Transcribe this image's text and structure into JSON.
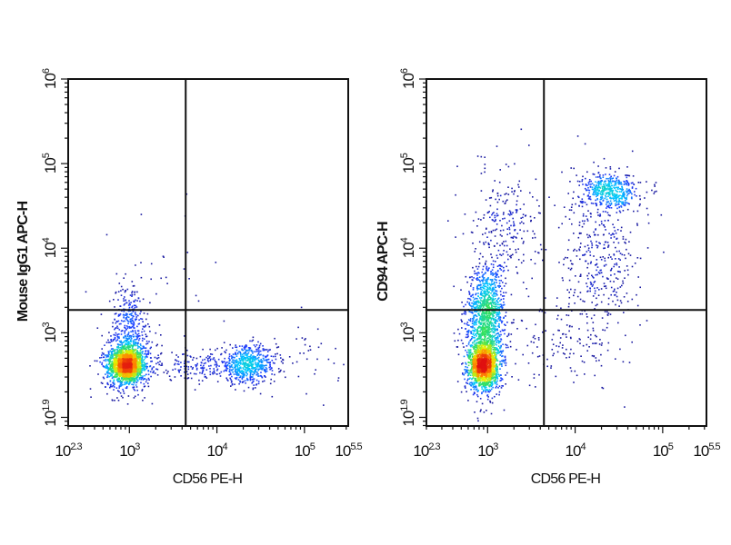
{
  "chart_data": [
    {
      "type": "scatter",
      "subtype": "flow-cytometry-density-dot-plot",
      "xlabel": "CD56 PE-H",
      "ylabel": "Mouse IgG1 APC-H",
      "xscale": "log",
      "yscale": "log",
      "xlim": [
        200,
        316228
      ],
      "ylim": [
        79,
        1000000
      ],
      "x_ticks": [
        {
          "base": "10",
          "exp": "2.3",
          "value": 200
        },
        {
          "base": "10",
          "exp": "3",
          "value": 1000
        },
        {
          "base": "10",
          "exp": "4",
          "value": 10000
        },
        {
          "base": "10",
          "exp": "5",
          "value": 100000
        },
        {
          "base": "10",
          "exp": "5.5",
          "value": 316228
        }
      ],
      "y_ticks": [
        {
          "base": "10",
          "exp": "1.9",
          "value": 79
        },
        {
          "base": "10",
          "exp": "3",
          "value": 1000
        },
        {
          "base": "10",
          "exp": "4",
          "value": 10000
        },
        {
          "base": "10",
          "exp": "5",
          "value": 100000
        },
        {
          "base": "10",
          "exp": "6",
          "value": 1000000
        }
      ],
      "quadrant_gate": {
        "x": 4400,
        "y": 1860
      },
      "populations": [
        {
          "center_x": 933,
          "center_y": 417,
          "spread_decades": [
            0.09,
            0.1
          ],
          "events": 1400
        },
        {
          "center_x": 933,
          "center_y": 447,
          "spread_decades": [
            0.14,
            0.17
          ],
          "events": 700
        },
        {
          "center_x": 1000,
          "center_y": 1259,
          "spread_decades": [
            0.1,
            0.25
          ],
          "events": 300
        },
        {
          "center_x": 22387,
          "center_y": 417,
          "spread_decades": [
            0.17,
            0.11
          ],
          "events": 650
        },
        {
          "center_x": 5012,
          "center_y": 398,
          "spread_decades": [
            0.25,
            0.08
          ],
          "events": 150
        },
        {
          "center_x": 1995,
          "center_y": 2512,
          "spread_decades": [
            0.3,
            0.5
          ],
          "events": 40
        },
        {
          "center_x": 125893,
          "center_y": 501,
          "spread_decades": [
            0.15,
            0.2
          ],
          "events": 30
        }
      ]
    },
    {
      "type": "scatter",
      "subtype": "flow-cytometry-density-dot-plot",
      "xlabel": "CD56 PE-H",
      "ylabel": "CD94 APC-H",
      "xscale": "log",
      "yscale": "log",
      "xlim": [
        200,
        316228
      ],
      "ylim": [
        79,
        1000000
      ],
      "x_ticks": [
        {
          "base": "10",
          "exp": "2.3",
          "value": 200
        },
        {
          "base": "10",
          "exp": "3",
          "value": 1000
        },
        {
          "base": "10",
          "exp": "4",
          "value": 10000
        },
        {
          "base": "10",
          "exp": "5",
          "value": 100000
        },
        {
          "base": "10",
          "exp": "5.5",
          "value": 316228
        }
      ],
      "y_ticks": [
        {
          "base": "10",
          "exp": "1.9",
          "value": 79
        },
        {
          "base": "10",
          "exp": "3",
          "value": 1000
        },
        {
          "base": "10",
          "exp": "4",
          "value": 10000
        },
        {
          "base": "10",
          "exp": "5",
          "value": 100000
        },
        {
          "base": "10",
          "exp": "6",
          "value": 1000000
        }
      ],
      "quadrant_gate": {
        "x": 4400,
        "y": 1860
      },
      "populations": [
        {
          "center_x": 891,
          "center_y": 398,
          "spread_decades": [
            0.08,
            0.12
          ],
          "events": 1200
        },
        {
          "center_x": 933,
          "center_y": 794,
          "spread_decades": [
            0.11,
            0.3
          ],
          "events": 1100
        },
        {
          "center_x": 1000,
          "center_y": 2512,
          "spread_decades": [
            0.1,
            0.22
          ],
          "events": 500
        },
        {
          "center_x": 25119,
          "center_y": 47863,
          "spread_decades": [
            0.16,
            0.1
          ],
          "events": 450
        },
        {
          "center_x": 19953,
          "center_y": 7943,
          "spread_decades": [
            0.22,
            0.45
          ],
          "events": 400
        },
        {
          "center_x": 1585,
          "center_y": 19953,
          "spread_decades": [
            0.2,
            0.35
          ],
          "events": 250
        },
        {
          "center_x": 7943,
          "center_y": 794,
          "spread_decades": [
            0.35,
            0.25
          ],
          "events": 150
        }
      ]
    }
  ],
  "colors": {
    "frame": "#111111",
    "density_colormap": [
      "#1818a0",
      "#1e3cff",
      "#00c8ff",
      "#30e060",
      "#e8f000",
      "#ff8000",
      "#e01010"
    ]
  }
}
